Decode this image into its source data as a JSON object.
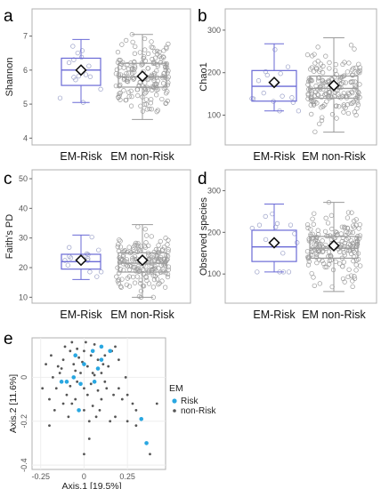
{
  "figure": {
    "colors": {
      "risk": "#6a6ad6",
      "nonrisk": "#9a9a9a",
      "frame": "#b0b0b0",
      "grid": "#eeeeee"
    }
  },
  "chart_data": [
    {
      "panel": "a",
      "type": "box",
      "ylabel": "Shannon",
      "categories": [
        "EM-Risk",
        "EM non-Risk"
      ],
      "ylim": [
        3.8,
        7.8
      ],
      "yticks": [
        4,
        5,
        6,
        7
      ],
      "boxes": [
        {
          "name": "EM-Risk",
          "min": 5.05,
          "q1": 5.55,
          "median": 6.0,
          "q3": 6.35,
          "max": 6.9,
          "mean": 6.0,
          "n": 15
        },
        {
          "name": "EM non-Risk",
          "min": 4.55,
          "q1": 5.5,
          "median": 5.8,
          "q3": 6.2,
          "max": 7.05,
          "mean": 5.82,
          "n": 180
        }
      ]
    },
    {
      "panel": "b",
      "type": "box",
      "ylabel": "Chao1",
      "categories": [
        "EM-Risk",
        "EM non-Risk"
      ],
      "ylim": [
        30,
        350
      ],
      "yticks": [
        100,
        200,
        300
      ],
      "boxes": [
        {
          "name": "EM-Risk",
          "min": 110,
          "q1": 133,
          "median": 168,
          "q3": 205,
          "max": 268,
          "mean": 177,
          "n": 15
        },
        {
          "name": "EM non-Risk",
          "min": 60,
          "q1": 140,
          "median": 163,
          "q3": 192,
          "max": 282,
          "mean": 170,
          "n": 180
        }
      ]
    },
    {
      "panel": "c",
      "type": "box",
      "ylabel": "Faith's PD",
      "categories": [
        "EM-Risk",
        "EM non-Risk"
      ],
      "ylim": [
        8,
        53
      ],
      "yticks": [
        10,
        20,
        30,
        40,
        50
      ],
      "boxes": [
        {
          "name": "EM-Risk",
          "min": 16,
          "q1": 19.5,
          "median": 22,
          "q3": 24.5,
          "max": 31,
          "mean": 22.5,
          "n": 15
        },
        {
          "name": "EM non-Risk",
          "min": 10,
          "q1": 18.5,
          "median": 21.5,
          "q3": 25,
          "max": 34.5,
          "mean": 22.5,
          "n": 180
        }
      ]
    },
    {
      "panel": "d",
      "type": "box",
      "ylabel": "Observed species",
      "categories": [
        "EM-Risk",
        "EM non-Risk"
      ],
      "ylim": [
        30,
        350
      ],
      "yticks": [
        100,
        200,
        300
      ],
      "boxes": [
        {
          "name": "EM-Risk",
          "min": 105,
          "q1": 130,
          "median": 165,
          "q3": 205,
          "max": 268,
          "mean": 175,
          "n": 15
        },
        {
          "name": "EM non-Risk",
          "min": 58,
          "q1": 138,
          "median": 162,
          "q3": 190,
          "max": 272,
          "mean": 168,
          "n": 180
        }
      ]
    },
    {
      "panel": "e",
      "type": "scatter",
      "xlabel": "Axis.1  [19.5%]",
      "ylabel": "Axis.2  [11.6%]",
      "xlim": [
        -0.3,
        0.47
      ],
      "ylim": [
        -0.42,
        0.18
      ],
      "xticks": [
        -0.25,
        0,
        0.25
      ],
      "yticks": [
        -0.4,
        -0.2,
        0
      ],
      "legend": {
        "title": "EM",
        "position": "right",
        "entries": [
          "Risk",
          "non-Risk"
        ]
      },
      "series": [
        {
          "name": "Risk",
          "points": [
            [
              -0.05,
              0.1
            ],
            [
              0.0,
              0.06
            ],
            [
              0.05,
              0.12
            ],
            [
              -0.02,
              -0.03
            ],
            [
              -0.1,
              -0.02
            ],
            [
              0.08,
              0.04
            ],
            [
              0.1,
              0.14
            ],
            [
              -0.03,
              -0.15
            ],
            [
              0.36,
              -0.3
            ],
            [
              0.33,
              -0.19
            ],
            [
              -0.13,
              -0.02
            ],
            [
              0.06,
              -0.02
            ],
            [
              0.1,
              0.08
            ],
            [
              0.15,
              0.12
            ],
            [
              -0.06,
              0.0
            ]
          ]
        },
        {
          "name": "non-Risk",
          "points": [
            [
              -0.15,
              0.05
            ],
            [
              -0.12,
              0.08
            ],
            [
              -0.08,
              0.12
            ],
            [
              -0.05,
              0.03
            ],
            [
              -0.03,
              0.09
            ],
            [
              0.0,
              0.12
            ],
            [
              0.02,
              0.05
            ],
            [
              0.04,
              0.1
            ],
            [
              0.06,
              0.15
            ],
            [
              0.08,
              0.08
            ],
            [
              0.1,
              0.02
            ],
            [
              0.12,
              0.1
            ],
            [
              0.14,
              0.05
            ],
            [
              0.16,
              0.12
            ],
            [
              -0.18,
              0.0
            ],
            [
              -0.16,
              -0.05
            ],
            [
              -0.14,
              0.02
            ],
            [
              -0.1,
              -0.08
            ],
            [
              -0.08,
              -0.04
            ],
            [
              -0.06,
              0.06
            ],
            [
              -0.04,
              -0.02
            ],
            [
              -0.02,
              0.02
            ],
            [
              0.0,
              -0.05
            ],
            [
              0.02,
              -0.08
            ],
            [
              0.04,
              -0.03
            ],
            [
              0.06,
              0.01
            ],
            [
              0.08,
              -0.06
            ],
            [
              0.1,
              -0.1
            ],
            [
              0.12,
              -0.02
            ],
            [
              -0.2,
              -0.1
            ],
            [
              -0.17,
              -0.15
            ],
            [
              -0.12,
              -0.12
            ],
            [
              -0.09,
              -0.18
            ],
            [
              -0.05,
              -0.1
            ],
            [
              0.0,
              -0.15
            ],
            [
              0.03,
              -0.2
            ],
            [
              0.05,
              -0.13
            ],
            [
              0.07,
              -0.18
            ],
            [
              0.09,
              -0.15
            ],
            [
              0.2,
              -0.05
            ],
            [
              0.22,
              -0.1
            ],
            [
              0.25,
              -0.08
            ],
            [
              0.28,
              -0.12
            ],
            [
              0.3,
              -0.15
            ],
            [
              0.18,
              -0.18
            ],
            [
              0.25,
              -0.2
            ],
            [
              0.3,
              -0.22
            ],
            [
              0.42,
              -0.12
            ],
            [
              0.2,
              0.08
            ],
            [
              0.18,
              0.14
            ],
            [
              0.15,
              -0.2
            ],
            [
              -0.22,
              0.06
            ],
            [
              -0.19,
              0.1
            ],
            [
              -0.11,
              0.14
            ],
            [
              -0.07,
              0.16
            ],
            [
              0.01,
              0.16
            ],
            [
              0.05,
              0.02
            ],
            [
              -0.01,
              0.07
            ],
            [
              -0.13,
              0.04
            ],
            [
              0.11,
              0.06
            ],
            [
              0.13,
              -0.05
            ],
            [
              0.03,
              -0.28
            ],
            [
              0.0,
              -0.35
            ],
            [
              -0.2,
              -0.22
            ],
            [
              0.38,
              -0.35
            ],
            [
              0.17,
              -0.08
            ],
            [
              -0.07,
              -0.12
            ],
            [
              -0.24,
              -0.05
            ],
            [
              0.24,
              0.0
            ],
            [
              -0.04,
              0.13
            ]
          ]
        }
      ]
    }
  ],
  "panel_labels": {
    "a": "a",
    "b": "b",
    "c": "c",
    "d": "d",
    "e": "e"
  }
}
